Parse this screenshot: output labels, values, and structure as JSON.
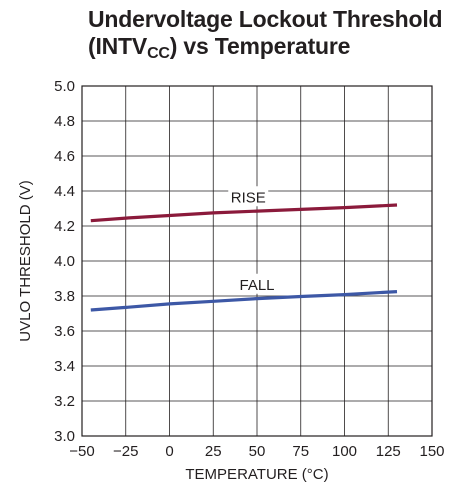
{
  "chart_data": {
    "type": "line",
    "title_line1": "Undervoltage Lockout Threshold",
    "title_line2_pre": "(INTV",
    "title_line2_sub": "CC",
    "title_line2_post": ") vs Temperature",
    "xlabel": "TEMPERATURE (°C)",
    "ylabel": "UVLO THRESHOLD (V)",
    "xlim": [
      -50,
      150
    ],
    "ylim": [
      3.0,
      5.0
    ],
    "xticks": [
      -50,
      -25,
      0,
      25,
      50,
      75,
      100,
      125,
      150
    ],
    "xtick_labels": [
      "−50",
      "−25",
      "0",
      "25",
      "50",
      "75",
      "100",
      "125",
      "150"
    ],
    "yticks": [
      3.0,
      3.2,
      3.4,
      3.6,
      3.8,
      4.0,
      4.2,
      4.4,
      4.6,
      4.8,
      5.0
    ],
    "ytick_labels": [
      "3.0",
      "3.2",
      "3.4",
      "3.6",
      "3.8",
      "4.0",
      "4.2",
      "4.4",
      "4.6",
      "4.8",
      "5.0"
    ],
    "grid": true,
    "series": [
      {
        "name": "RISE",
        "color": "#8b1a3b",
        "x": [
          -45,
          -25,
          0,
          25,
          50,
          75,
          100,
          130
        ],
        "y": [
          4.23,
          4.245,
          4.26,
          4.275,
          4.285,
          4.295,
          4.305,
          4.32
        ],
        "label_at": [
          45,
          4.33
        ]
      },
      {
        "name": "FALL",
        "color": "#3d58a6",
        "x": [
          -45,
          -25,
          0,
          25,
          50,
          75,
          100,
          130
        ],
        "y": [
          3.72,
          3.735,
          3.755,
          3.77,
          3.785,
          3.797,
          3.808,
          3.825
        ],
        "label_at": [
          50,
          3.83
        ]
      }
    ]
  }
}
